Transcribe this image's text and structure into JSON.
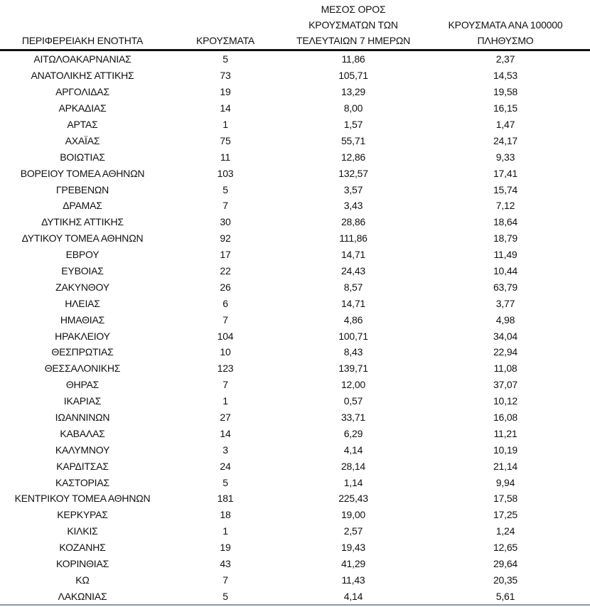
{
  "colors": {
    "background": "#ffffff",
    "text": "#111111",
    "header_rule": "#111111",
    "bottom_rule": "#8e99a3"
  },
  "table": {
    "headers": {
      "region": "ΠΕΡΙΦΕΡΕΙΑΚΗ ΕΝΟΤΗΤΑ",
      "cases": "ΚΡΟΥΣΜΑΤΑ",
      "avg7": [
        "ΜΕΣΟΣ ΟΡΟΣ",
        "ΚΡΟΥΣΜΑΤΩΝ ΤΩΝ",
        "ΤΕΛΕΥΤΑΙΩΝ 7 ΗΜΕΡΩΝ"
      ],
      "per100k": [
        "ΚΡΟΥΣΜΑΤΑ ΑΝΑ 100000",
        "ΠΛΗΘΥΣΜΟ"
      ]
    },
    "rows": [
      [
        "ΑΙΤΩΛΟΑΚΑΡΝΑΝΙΑΣ",
        "5",
        "11,86",
        "2,37"
      ],
      [
        "ΑΝΑΤΟΛΙΚΗΣ ΑΤΤΙΚΗΣ",
        "73",
        "105,71",
        "14,53"
      ],
      [
        "ΑΡΓΟΛΙΔΑΣ",
        "19",
        "13,29",
        "19,58"
      ],
      [
        "ΑΡΚΑΔΙΑΣ",
        "14",
        "8,00",
        "16,15"
      ],
      [
        "ΑΡΤΑΣ",
        "1",
        "1,57",
        "1,47"
      ],
      [
        "ΑΧΑΪΑΣ",
        "75",
        "55,71",
        "24,17"
      ],
      [
        "ΒΟΙΩΤΙΑΣ",
        "11",
        "12,86",
        "9,33"
      ],
      [
        "ΒΟΡΕΙΟΥ ΤΟΜΕΑ ΑΘΗΝΩΝ",
        "103",
        "132,57",
        "17,41"
      ],
      [
        "ΓΡΕΒΕΝΩΝ",
        "5",
        "3,57",
        "15,74"
      ],
      [
        "ΔΡΑΜΑΣ",
        "7",
        "3,43",
        "7,12"
      ],
      [
        "ΔΥΤΙΚΗΣ ΑΤΤΙΚΗΣ",
        "30",
        "28,86",
        "18,64"
      ],
      [
        "ΔΥΤΙΚΟΥ ΤΟΜΕΑ ΑΘΗΝΩΝ",
        "92",
        "111,86",
        "18,79"
      ],
      [
        "ΕΒΡΟΥ",
        "17",
        "14,71",
        "11,49"
      ],
      [
        "ΕΥΒΟΙΑΣ",
        "22",
        "24,43",
        "10,44"
      ],
      [
        "ΖΑΚΥΝΘΟΥ",
        "26",
        "8,57",
        "63,79"
      ],
      [
        "ΗΛΕΙΑΣ",
        "6",
        "14,71",
        "3,77"
      ],
      [
        "ΗΜΑΘΙΑΣ",
        "7",
        "4,86",
        "4,98"
      ],
      [
        "ΗΡΑΚΛΕΙΟΥ",
        "104",
        "100,71",
        "34,04"
      ],
      [
        "ΘΕΣΠΡΩΤΙΑΣ",
        "10",
        "8,43",
        "22,94"
      ],
      [
        "ΘΕΣΣΑΛΟΝΙΚΗΣ",
        "123",
        "139,71",
        "11,08"
      ],
      [
        "ΘΗΡΑΣ",
        "7",
        "12,00",
        "37,07"
      ],
      [
        "ΙΚΑΡΙΑΣ",
        "1",
        "0,57",
        "10,12"
      ],
      [
        "ΙΩΑΝΝΙΝΩΝ",
        "27",
        "33,71",
        "16,08"
      ],
      [
        "ΚΑΒΑΛΑΣ",
        "14",
        "6,29",
        "11,21"
      ],
      [
        "ΚΑΛΥΜΝΟΥ",
        "3",
        "4,14",
        "10,19"
      ],
      [
        "ΚΑΡΔΙΤΣΑΣ",
        "24",
        "28,14",
        "21,14"
      ],
      [
        "ΚΑΣΤΟΡΙΑΣ",
        "5",
        "1,14",
        "9,94"
      ],
      [
        "ΚΕΝΤΡΙΚΟΥ ΤΟΜΕΑ ΑΘΗΝΩΝ",
        "181",
        "225,43",
        "17,58"
      ],
      [
        "ΚΕΡΚΥΡΑΣ",
        "18",
        "19,00",
        "17,25"
      ],
      [
        "ΚΙΛΚΙΣ",
        "1",
        "2,57",
        "1,24"
      ],
      [
        "ΚΟΖΑΝΗΣ",
        "19",
        "19,43",
        "12,65"
      ],
      [
        "ΚΟΡΙΝΘΙΑΣ",
        "43",
        "41,29",
        "29,64"
      ],
      [
        "ΚΩ",
        "7",
        "11,43",
        "20,35"
      ],
      [
        "ΛΑΚΩΝΙΑΣ",
        "5",
        "4,14",
        "5,61"
      ]
    ]
  }
}
